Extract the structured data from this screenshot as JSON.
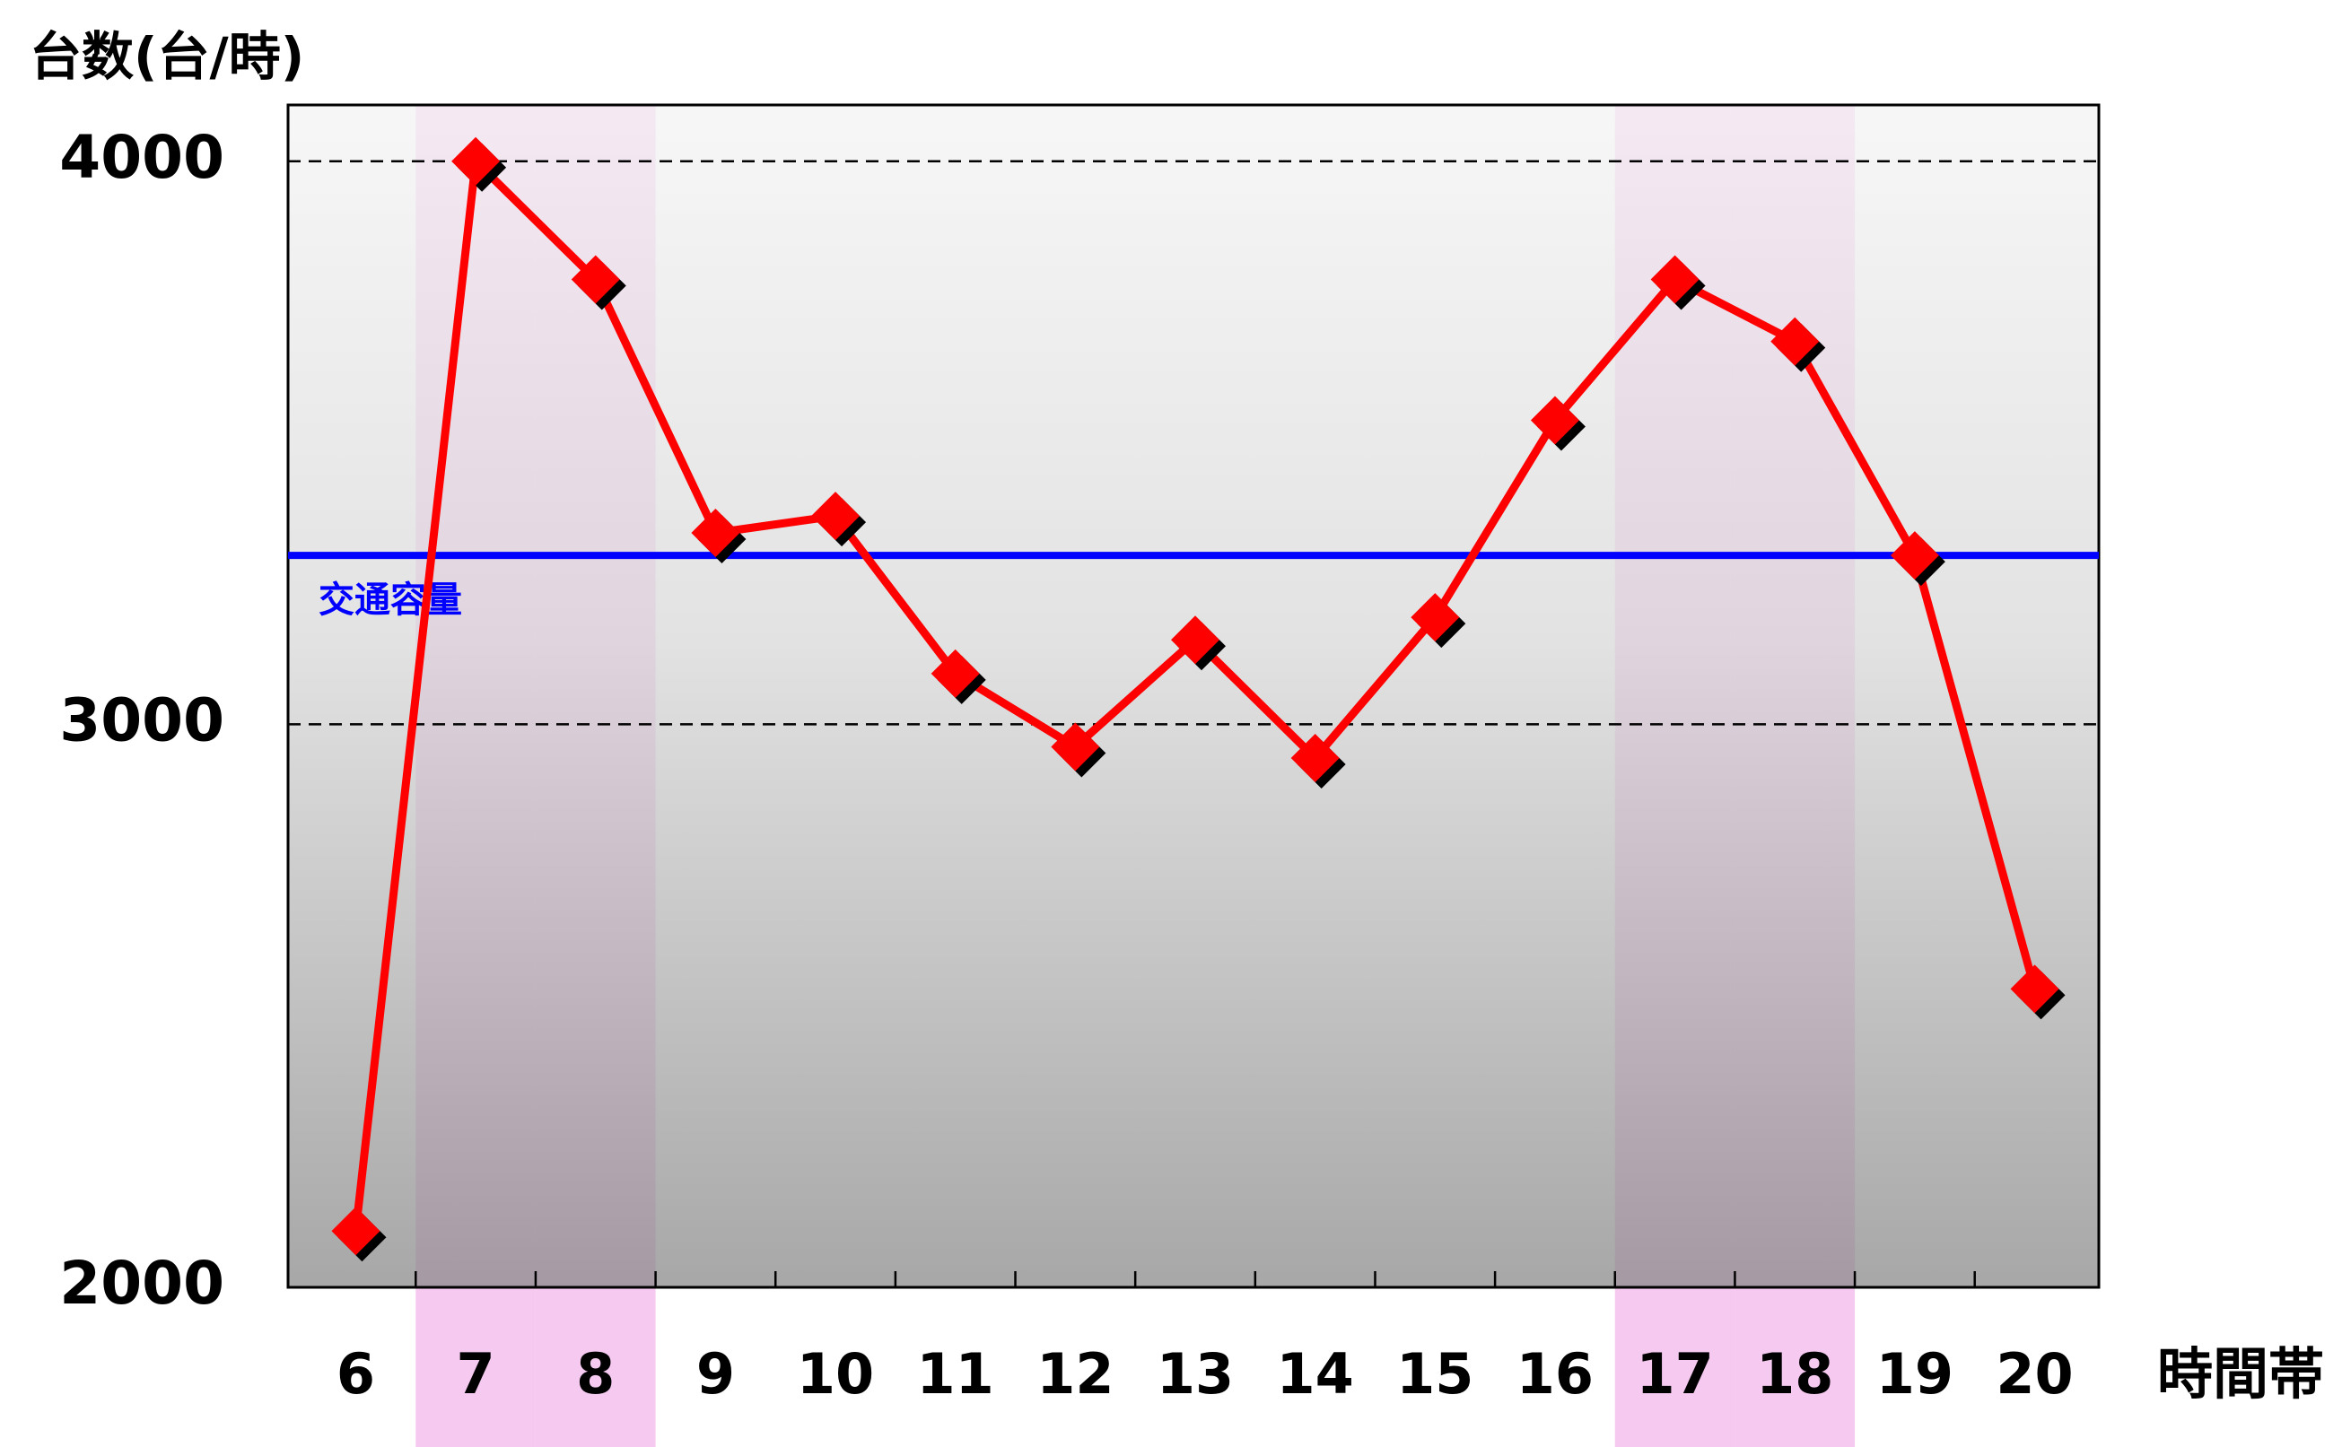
{
  "chart_data": {
    "type": "line",
    "y_label": "台数(台/時)",
    "x_label": "時間帯",
    "categories": [
      "6",
      "7",
      "8",
      "9",
      "10",
      "11",
      "12",
      "13",
      "14",
      "15",
      "16",
      "17",
      "18",
      "19",
      "20"
    ],
    "values": [
      2100,
      4000,
      3790,
      3340,
      3370,
      3090,
      2960,
      3150,
      2940,
      3190,
      3540,
      3790,
      3680,
      3300,
      2530
    ],
    "color": "#ff0000",
    "ylim": [
      2000,
      4100
    ],
    "yticks": [
      2000,
      3000,
      4000
    ],
    "grid": true,
    "highlight": [
      1,
      2,
      11,
      12
    ],
    "highlight_color": "#f6c9f1",
    "reference_line": {
      "value": 3300,
      "label": "交通容量",
      "color": "#0000ff"
    }
  }
}
